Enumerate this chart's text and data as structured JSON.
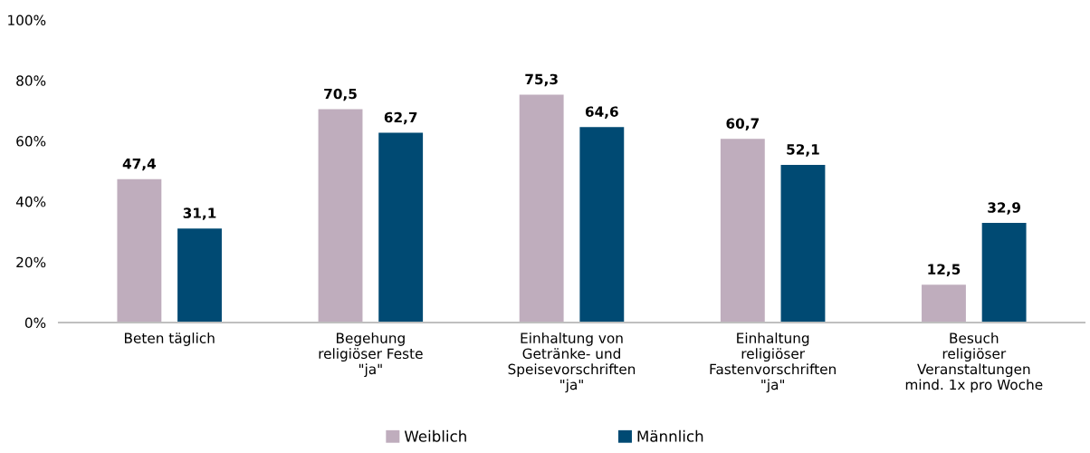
{
  "chart_data": {
    "type": "bar",
    "categories": [
      "Beten täglich",
      "Begehung\nreligiöser Feste\n\"ja\"",
      "Einhaltung von\nGetränke- und\nSpeisevorschriften\n\"ja\"",
      "Einhaltung\nreligiöser\nFastenvorschriften\n\"ja\"",
      "Besuch\nreligiöser\nVeranstaltungen\nmind. 1x pro Woche"
    ],
    "series": [
      {
        "name": "Weiblich",
        "color": "#bfadbd",
        "values": [
          47.4,
          70.5,
          75.3,
          60.7,
          12.5
        ],
        "value_labels": [
          "47,4",
          "70,5",
          "75,3",
          "60,7",
          "12,5"
        ]
      },
      {
        "name": "Männlich",
        "color": "#004a73",
        "values": [
          31.1,
          62.7,
          64.6,
          52.1,
          32.9
        ],
        "value_labels": [
          "31,1",
          "62,7",
          "64,6",
          "52,1",
          "32,9"
        ]
      }
    ],
    "ylim": [
      0,
      100
    ],
    "yticks": [
      {
        "value": 0,
        "label": "0%"
      },
      {
        "value": 20,
        "label": "20%"
      },
      {
        "value": 40,
        "label": "40%"
      },
      {
        "value": 60,
        "label": "60%"
      },
      {
        "value": 80,
        "label": "80%"
      },
      {
        "value": 100,
        "label": "100%"
      }
    ],
    "grid": false,
    "legend": "bottom"
  }
}
